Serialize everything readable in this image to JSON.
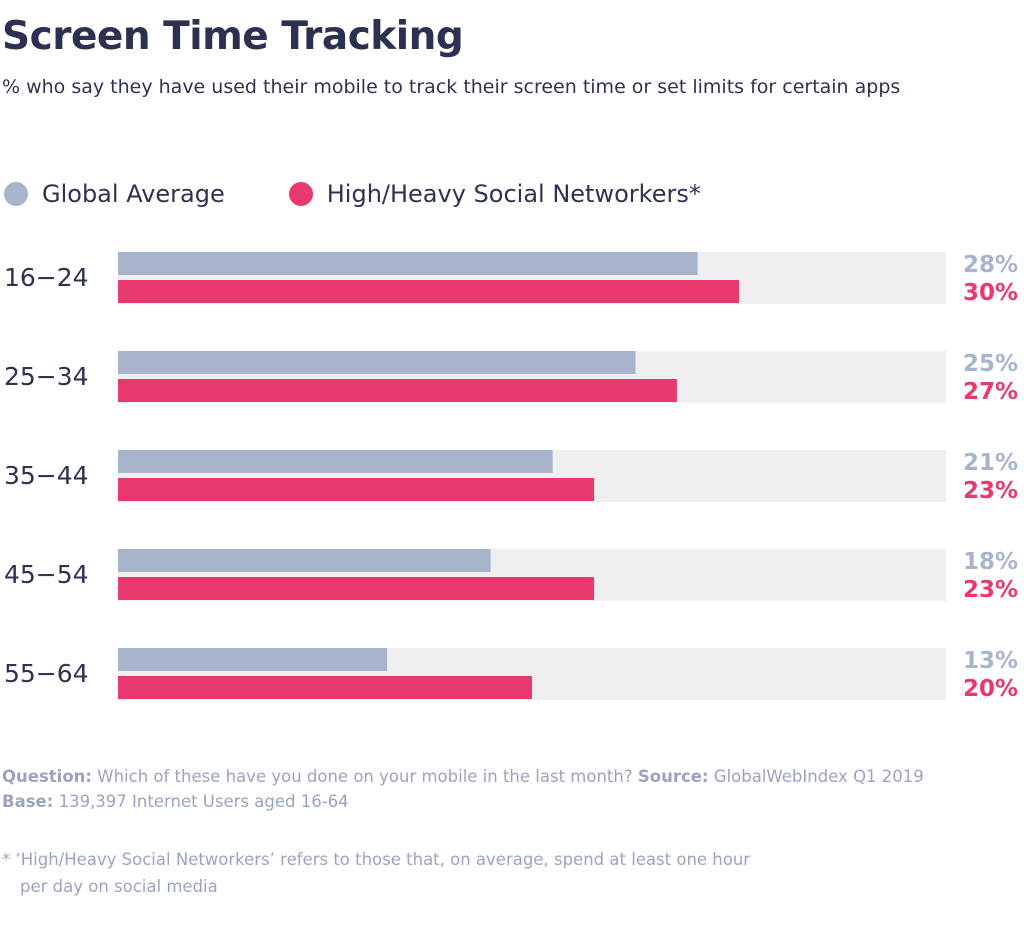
{
  "title": "Screen Time Tracking",
  "subtitle": "% who say they have used their mobile to track their screen time or set limits for certain apps",
  "legend": [
    {
      "label": "Global Average",
      "color": "#a8b4cc"
    },
    {
      "label": "High/Heavy Social Networkers*",
      "color": "#e8396e"
    }
  ],
  "chart_data": {
    "type": "bar",
    "orientation": "horizontal",
    "categories": [
      "16−24",
      "25−34",
      "35−44",
      "45−54",
      "55−64"
    ],
    "series": [
      {
        "name": "Global Average",
        "values": [
          28,
          25,
          21,
          18,
          13
        ],
        "labels": [
          "28%",
          "25%",
          "21%",
          "18%",
          "13%"
        ],
        "color": "#a8b4cc"
      },
      {
        "name": "High/Heavy Social Networkers*",
        "values": [
          30,
          27,
          23,
          23,
          20
        ],
        "labels": [
          "30%",
          "27%",
          "23%",
          "23%",
          "20%"
        ],
        "color": "#e8396e"
      }
    ],
    "xlim": [
      0,
      40
    ],
    "track_color": "#efeff1",
    "grid": false,
    "legend_position": "top-left"
  },
  "footer": {
    "question_label": "Question:",
    "question_text": " Which of these have you done on your mobile in the last month? ",
    "source_label": "Source:",
    "source_text": " GlobalWebIndex Q1 2019",
    "base_label": "Base:",
    "base_text": " 139,397 Internet Users aged 16-64"
  },
  "note": {
    "line1": "* ‘High/Heavy Social Networkers’ refers to those that, on average, spend at least one hour",
    "line2": "per day on social media"
  }
}
